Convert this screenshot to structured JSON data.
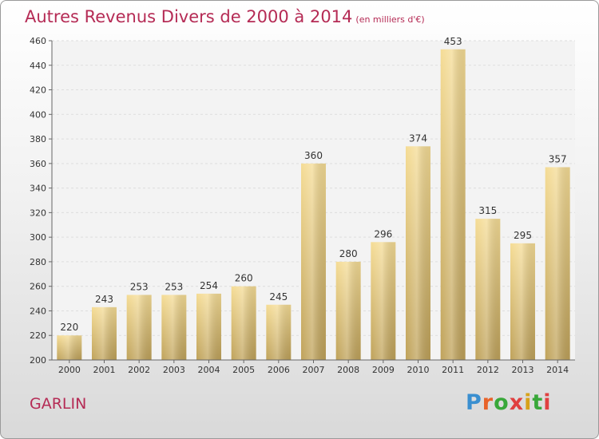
{
  "title": "Autres Revenus Divers de 2000 à 2014",
  "subtitle": "(en milliers d'€)",
  "location": "GARLIN",
  "logo": {
    "text": "Proxiti",
    "colors": [
      "#3a8fd0",
      "#e8632a",
      "#39a83a",
      "#e04040",
      "#d7a21a",
      "#39a83a",
      "#e04040"
    ]
  },
  "chart_data": {
    "type": "bar",
    "title": "Autres Revenus Divers de 2000 à 2014",
    "subtitle": "(en milliers d'€)",
    "categories": [
      "2000",
      "2001",
      "2002",
      "2003",
      "2004",
      "2005",
      "2006",
      "2007",
      "2008",
      "2009",
      "2010",
      "2011",
      "2012",
      "2013",
      "2014"
    ],
    "values": [
      220,
      243,
      253,
      253,
      254,
      260,
      245,
      360,
      280,
      296,
      374,
      453,
      315,
      295,
      357
    ],
    "ylim": [
      200,
      460
    ],
    "yticks": [
      200,
      220,
      240,
      260,
      280,
      300,
      320,
      340,
      360,
      380,
      400,
      420,
      440,
      460
    ],
    "grid": true,
    "bar_color_top": "#f5dc95",
    "bar_color_bottom": "#bfa25a"
  }
}
